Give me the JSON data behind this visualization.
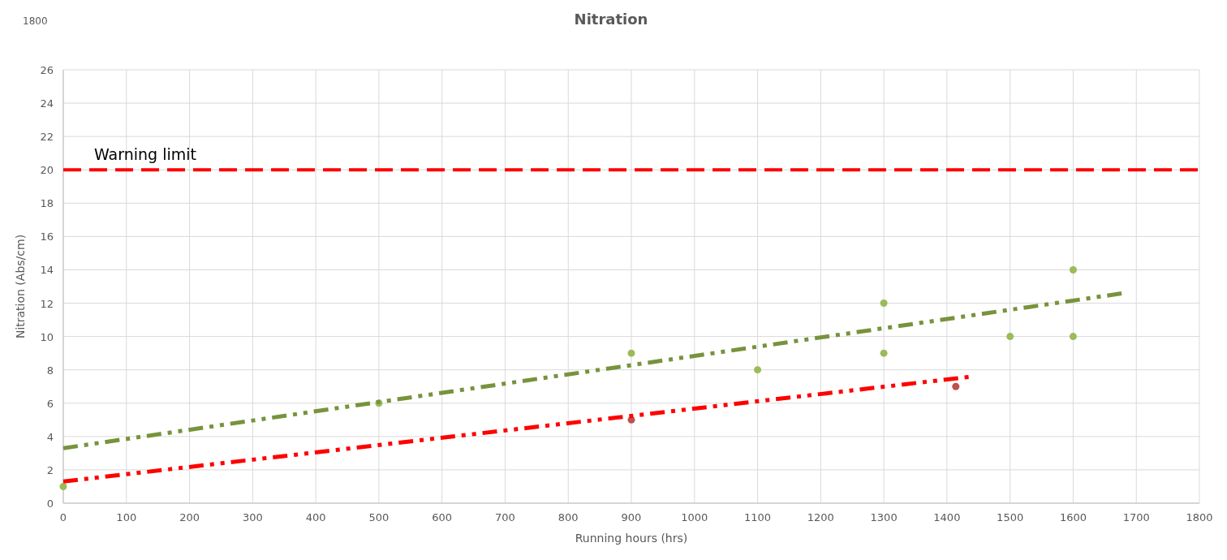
{
  "chart_data": {
    "type": "scatter",
    "title": "Nitration",
    "xlabel": "Running hours (hrs)",
    "ylabel": "Nitration (Abs/cm)",
    "annotations": [
      "1800"
    ],
    "xlim": [
      0,
      1800
    ],
    "xticks": [
      0,
      100,
      200,
      300,
      400,
      500,
      600,
      700,
      800,
      900,
      1000,
      1100,
      1200,
      1300,
      1400,
      1500,
      1600,
      1700,
      1800
    ],
    "ylim": [
      0,
      26
    ],
    "yticks": [
      0,
      2,
      4,
      6,
      8,
      10,
      12,
      14,
      16,
      18,
      20,
      22,
      24,
      26
    ],
    "grid": true,
    "marker": "circle",
    "ref_lines": [
      {
        "axis": "y",
        "value": 20,
        "label": "Warning limit",
        "color": "#ff0000",
        "line_style": "dashed"
      }
    ],
    "series": [
      {
        "color": "#c0504d",
        "x": [
          900,
          1414
        ],
        "values": [
          5,
          7
        ]
      },
      {
        "color": "#9bbb59",
        "x": [
          0,
          500,
          900,
          1100,
          1300,
          1300,
          1500,
          1600,
          1600
        ],
        "values": [
          1,
          6,
          9,
          8,
          12,
          9,
          10,
          14,
          10
        ]
      },
      {
        "type": "line",
        "color": "#ff0000",
        "line_style": "dashed",
        "marker": "none",
        "x": [
          0,
          1440
        ],
        "values": [
          1.3,
          7.6
        ]
      },
      {
        "type": "line",
        "color": "#77933c",
        "line_style": "dashed",
        "marker": "none",
        "x": [
          0,
          1680
        ],
        "values": [
          3.3,
          12.6
        ]
      }
    ]
  }
}
